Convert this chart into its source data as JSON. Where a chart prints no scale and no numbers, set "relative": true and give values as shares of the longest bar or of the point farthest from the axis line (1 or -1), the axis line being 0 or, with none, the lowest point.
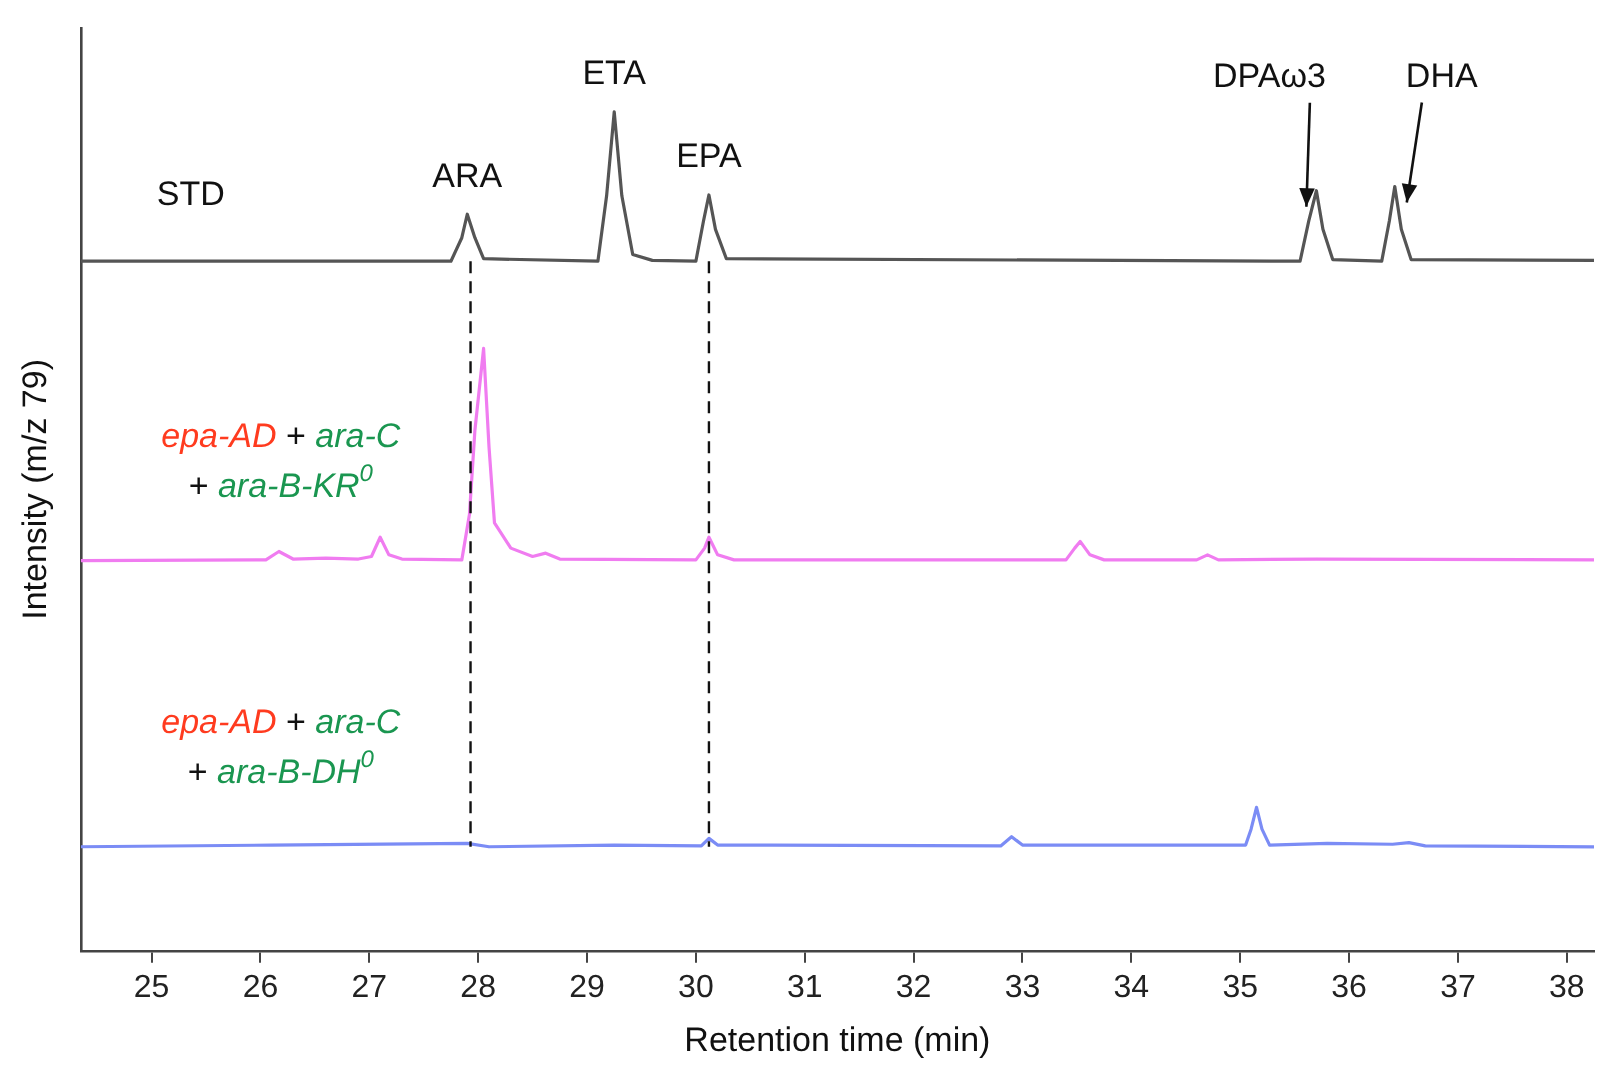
{
  "chart_data": {
    "type": "line",
    "relative": true,
    "xlabel": "Retention time (min)",
    "ylabel": "Intensity (m/z 79)",
    "xlim": [
      24.35,
      38.25
    ],
    "xticks": [
      25,
      26,
      27,
      28,
      29,
      30,
      31,
      32,
      33,
      34,
      35,
      36,
      37,
      38
    ],
    "grid": false,
    "legend": false,
    "marker": "none",
    "line_style": "solid",
    "series": [
      {
        "name": "STD",
        "color": "#555555",
        "x": [
          24.35,
          26,
          27.75,
          27.85,
          27.9,
          27.97,
          28.05,
          29.1,
          29.18,
          29.25,
          29.32,
          29.42,
          29.6,
          30.0,
          30.07,
          30.12,
          30.18,
          30.28,
          35.55,
          35.63,
          35.7,
          35.76,
          35.85,
          36.3,
          36.37,
          36.42,
          36.48,
          36.57,
          38.25
        ],
        "values": [
          0.822,
          0.822,
          0.822,
          0.85,
          0.878,
          0.85,
          0.825,
          0.822,
          0.9,
          1.0,
          0.9,
          0.83,
          0.823,
          0.822,
          0.87,
          0.901,
          0.86,
          0.825,
          0.822,
          0.87,
          0.906,
          0.86,
          0.824,
          0.822,
          0.87,
          0.911,
          0.86,
          0.824,
          0.823
        ]
      },
      {
        "name": "epa-AD + ara-C + ara-B-KR$^{0}$",
        "color": "#f07cf0",
        "x": [
          24.35,
          26.05,
          26.17,
          26.3,
          26.6,
          26.9,
          27.02,
          27.1,
          27.18,
          27.3,
          27.85,
          27.92,
          27.97,
          28.05,
          28.1,
          28.15,
          28.3,
          28.5,
          28.62,
          28.75,
          30.0,
          30.08,
          30.12,
          30.2,
          30.35,
          33.4,
          33.48,
          33.53,
          33.62,
          33.75,
          34.6,
          34.7,
          34.8,
          35.7,
          38.25
        ],
        "values": [
          0.465,
          0.466,
          0.476,
          0.467,
          0.468,
          0.467,
          0.47,
          0.493,
          0.472,
          0.467,
          0.466,
          0.52,
          0.62,
          0.718,
          0.6,
          0.51,
          0.48,
          0.47,
          0.474,
          0.467,
          0.466,
          0.48,
          0.493,
          0.472,
          0.466,
          0.466,
          0.48,
          0.488,
          0.472,
          0.466,
          0.466,
          0.472,
          0.466,
          0.467,
          0.466
        ]
      },
      {
        "name": "epa-AD + ara-C + ara-B-DH$^{0}$",
        "color": "#7b8cf5",
        "x": [
          24.35,
          26.1,
          27.9,
          28.1,
          29.25,
          30.05,
          30.12,
          30.2,
          30.7,
          32.8,
          32.9,
          33.0,
          35.05,
          35.1,
          35.15,
          35.2,
          35.27,
          35.8,
          36.4,
          36.55,
          36.7,
          38.25
        ],
        "values": [
          0.124,
          0.126,
          0.128,
          0.124,
          0.126,
          0.125,
          0.134,
          0.126,
          0.126,
          0.125,
          0.136,
          0.126,
          0.126,
          0.145,
          0.171,
          0.145,
          0.126,
          0.128,
          0.127,
          0.129,
          0.125,
          0.124
        ]
      }
    ],
    "annotations": [
      {
        "text": "ARA",
        "x": 27.9,
        "y": 0.878
      },
      {
        "text": "ETA",
        "x": 29.25,
        "y": 1.0
      },
      {
        "text": "EPA",
        "x": 30.12,
        "y": 0.901
      },
      {
        "text": "DPAω3",
        "x": 35.7,
        "y": 0.906
      },
      {
        "text": "DHA",
        "x": 36.42,
        "y": 0.911
      }
    ],
    "ref_lines": [
      {
        "axis": "x",
        "value": 27.93,
        "line_style": "dashed"
      },
      {
        "axis": "x",
        "value": 30.12,
        "line_style": "dashed"
      }
    ]
  }
}
